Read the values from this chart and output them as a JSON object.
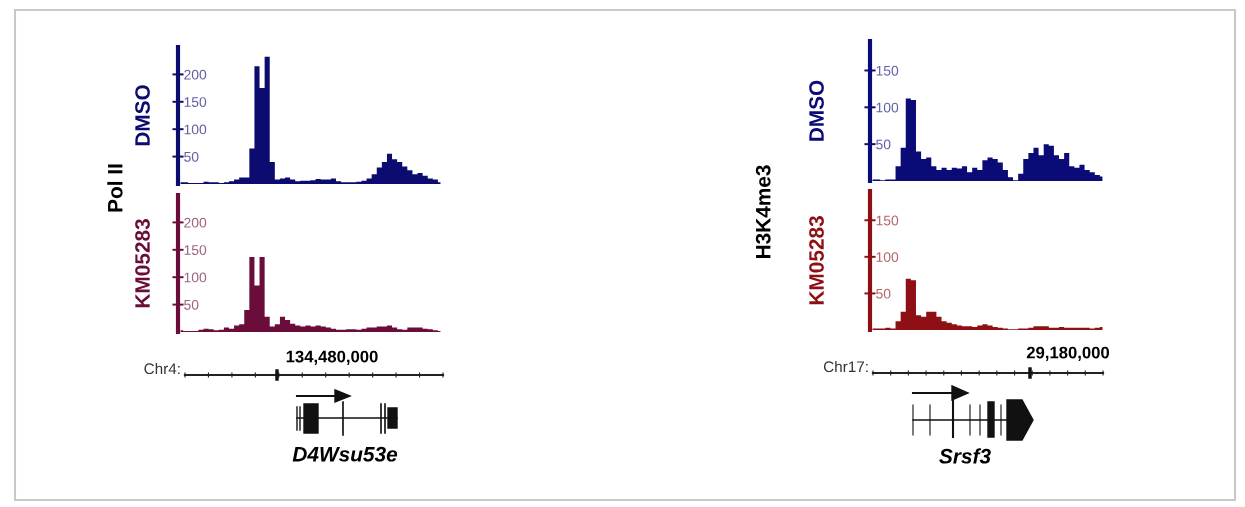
{
  "chart_data": [
    {
      "type": "area",
      "ylabel": "DMSO",
      "annotations": [
        "Pol II"
      ],
      "categories": [
        null,
        null,
        null,
        null,
        null,
        null,
        null,
        null,
        null,
        null,
        null,
        null,
        null,
        null,
        null,
        null,
        null,
        null,
        null,
        null,
        null,
        null,
        null,
        null,
        null,
        null,
        null,
        null,
        null,
        null,
        null,
        null,
        null,
        null,
        null,
        null,
        null,
        null,
        null,
        null,
        null,
        null,
        null,
        null,
        null,
        null,
        null,
        null,
        null,
        null,
        null,
        null
      ],
      "series": [
        {
          "color": "#0b0b70",
          "values": [
            3,
            3,
            2,
            2,
            2,
            4,
            3,
            3,
            2,
            3,
            5,
            8,
            12,
            12,
            65,
            215,
            175,
            232,
            40,
            8,
            10,
            12,
            8,
            5,
            6,
            6,
            7,
            9,
            8,
            8,
            10,
            5,
            3,
            3,
            3,
            4,
            6,
            10,
            18,
            30,
            40,
            55,
            45,
            40,
            32,
            25,
            18,
            20,
            15,
            10,
            8,
            3
          ]
        }
      ],
      "ylim": [
        0,
        250
      ],
      "yticks": [
        50,
        100,
        150,
        200
      ],
      "tick_labels": "y",
      "grid": false
    },
    {
      "type": "area",
      "ylabel": "KM05283",
      "annotations": [
        "Chr4:",
        "134,480,000",
        "D4Wsu53e"
      ],
      "categories": [
        null,
        null,
        null,
        null,
        null,
        null,
        null,
        null,
        null,
        null,
        null,
        null,
        null,
        null,
        null,
        null,
        null,
        null,
        null,
        null,
        null,
        null,
        null,
        null,
        null,
        null,
        null,
        null,
        null,
        null,
        null,
        null,
        null,
        null,
        null,
        null,
        null,
        null,
        null,
        null,
        null,
        null,
        null,
        null,
        null,
        null,
        null,
        null,
        null,
        null,
        null,
        null
      ],
      "series": [
        {
          "color": "#6a0d3a",
          "values": [
            3,
            2,
            2,
            2,
            4,
            6,
            5,
            3,
            4,
            8,
            6,
            12,
            14,
            40,
            137,
            85,
            137,
            28,
            10,
            14,
            28,
            22,
            15,
            12,
            10,
            12,
            10,
            12,
            10,
            8,
            6,
            4,
            4,
            5,
            5,
            4,
            6,
            8,
            8,
            10,
            10,
            12,
            8,
            5,
            4,
            8,
            8,
            8,
            6,
            5,
            3,
            2
          ]
        }
      ],
      "ylim": [
        0,
        250
      ],
      "yticks": [
        50,
        100,
        150,
        200
      ],
      "tick_labels": "y",
      "grid": false
    },
    {
      "type": "area",
      "ylabel": "DMSO",
      "annotations": [
        "H3K4me3"
      ],
      "categories": [
        null,
        null,
        null,
        null,
        null,
        null,
        null,
        null,
        null,
        null,
        null,
        null,
        null,
        null,
        null,
        null,
        null,
        null,
        null,
        null,
        null,
        null,
        null,
        null,
        null,
        null,
        null,
        null,
        null,
        null,
        null,
        null,
        null,
        null,
        null,
        null,
        null,
        null,
        null,
        null,
        null,
        null,
        null,
        null,
        null,
        null
      ],
      "series": [
        {
          "color": "#0b0b78",
          "values": [
            2,
            2,
            1,
            2,
            2,
            20,
            45,
            112,
            110,
            40,
            30,
            32,
            20,
            15,
            18,
            15,
            18,
            17,
            20,
            12,
            18,
            15,
            28,
            32,
            30,
            25,
            15,
            5,
            1,
            10,
            30,
            38,
            45,
            35,
            50,
            48,
            35,
            30,
            38,
            20,
            18,
            22,
            15,
            12,
            8,
            6
          ]
        }
      ],
      "ylim": [
        0,
        190
      ],
      "yticks": [
        50,
        100,
        150
      ],
      "tick_labels": "y",
      "grid": false
    },
    {
      "type": "area",
      "ylabel": "KM05283",
      "annotations": [
        "Chr17:",
        "29,180,000",
        "Srsf3"
      ],
      "categories": [
        null,
        null,
        null,
        null,
        null,
        null,
        null,
        null,
        null,
        null,
        null,
        null,
        null,
        null,
        null,
        null,
        null,
        null,
        null,
        null,
        null,
        null,
        null,
        null,
        null,
        null,
        null,
        null,
        null,
        null,
        null,
        null,
        null,
        null,
        null,
        null,
        null,
        null,
        null,
        null,
        null,
        null,
        null,
        null,
        null,
        null
      ],
      "series": [
        {
          "color": "#8e0f14",
          "values": [
            2,
            2,
            2,
            3,
            2,
            12,
            25,
            70,
            68,
            20,
            18,
            25,
            25,
            18,
            12,
            10,
            8,
            6,
            5,
            5,
            4,
            6,
            8,
            6,
            4,
            3,
            2,
            1,
            1,
            2,
            2,
            3,
            5,
            5,
            5,
            3,
            3,
            4,
            3,
            3,
            3,
            3,
            3,
            2,
            3,
            4
          ]
        }
      ],
      "ylim": [
        0,
        190
      ],
      "yticks": [
        50,
        100,
        150
      ],
      "tick_labels": "y",
      "grid": false
    }
  ]
}
